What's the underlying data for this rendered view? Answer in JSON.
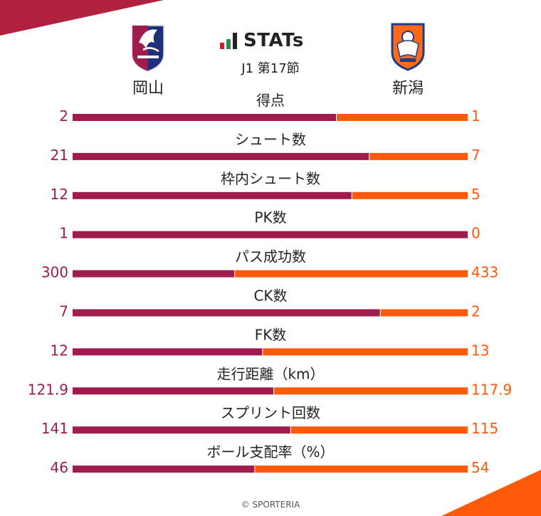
{
  "header": {
    "brand_word": "STATs",
    "round": "J1 第17節",
    "home_team": "岡山",
    "away_team": "新潟",
    "home_color": "#a01c4f",
    "away_color": "#ff5a0a",
    "corner_color": "#b0213e"
  },
  "chart_data": {
    "type": "bar",
    "orientation": "horizontal-stacked-comparison",
    "categories": [
      "得点",
      "シュート数",
      "枠内シュート数",
      "PK数",
      "パス成功数",
      "CK数",
      "FK数",
      "走行距離（km）",
      "スプリント回数",
      "ボール支配率（%）"
    ],
    "home_labels": [
      "2",
      "21",
      "12",
      "1",
      "300",
      "7",
      "12",
      "121.9",
      "141",
      "46"
    ],
    "away_labels": [
      "1",
      "7",
      "5",
      "0",
      "433",
      "2",
      "13",
      "117.9",
      "115",
      "54"
    ],
    "series": [
      {
        "name": "岡山",
        "values": [
          2,
          21,
          12,
          1,
          300,
          7,
          12,
          121.9,
          141,
          46
        ],
        "color": "#a01c4f"
      },
      {
        "name": "新潟",
        "values": [
          1,
          7,
          5,
          0,
          433,
          2,
          13,
          117.9,
          115,
          54
        ],
        "color": "#ff5a0a"
      }
    ]
  },
  "footer": {
    "credit": "© SPORTERIA"
  }
}
